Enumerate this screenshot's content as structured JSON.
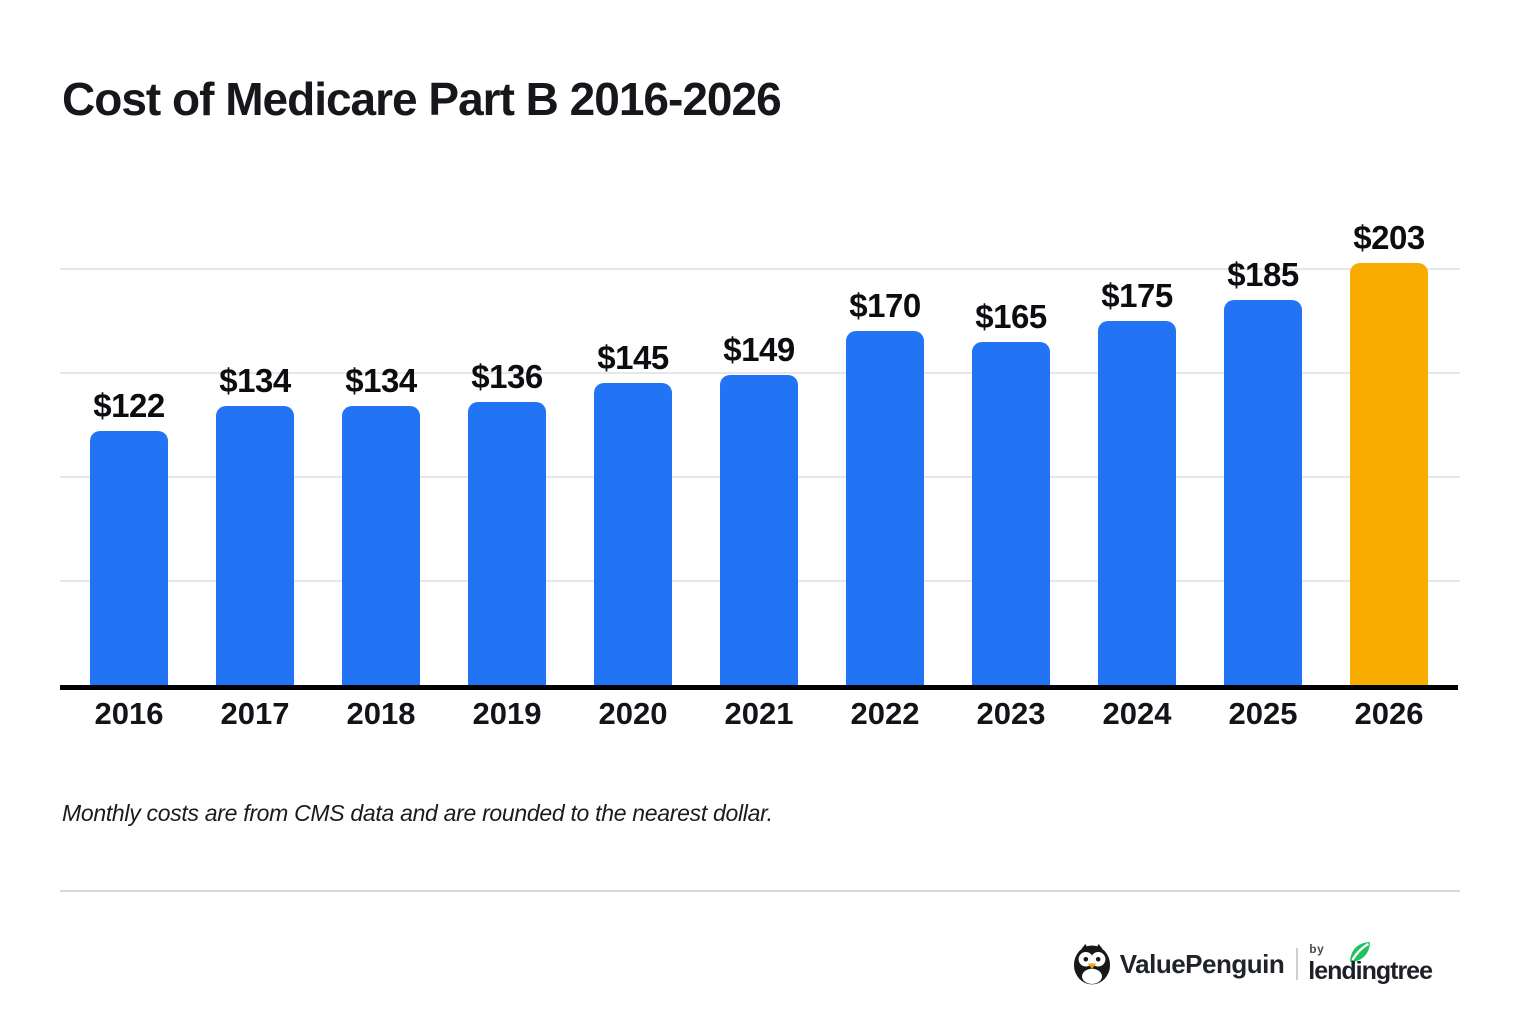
{
  "title": "Cost of Medicare Part B 2016-2026",
  "footnote": "Monthly costs are from CMS data and are rounded to the nearest dollar.",
  "branding": {
    "valuepenguin": "ValuePenguin",
    "by": "by",
    "lendingtree": "lendingtree"
  },
  "colors": {
    "bar_blue": "#2373F5",
    "bar_highlight_orange": "#F9AC00",
    "gridline": "#e7e7e7",
    "axis_black": "#010101",
    "leaf_green": "#1fc161",
    "penguin_beak_orange": "#f5a700"
  },
  "chart_data": {
    "type": "bar",
    "title": "Cost of Medicare Part B 2016-2026",
    "categories": [
      "2016",
      "2017",
      "2018",
      "2019",
      "2020",
      "2021",
      "2022",
      "2023",
      "2024",
      "2025",
      "2026"
    ],
    "values": [
      122,
      134,
      134,
      136,
      145,
      149,
      170,
      165,
      175,
      185,
      203
    ],
    "value_labels": [
      "$122",
      "$134",
      "$134",
      "$136",
      "$145",
      "$149",
      "$170",
      "$165",
      "$175",
      "$185",
      "$203"
    ],
    "highlight_index": 10,
    "xlabel": "",
    "ylabel": "",
    "ylim": [
      0,
      210
    ],
    "gridline_values": [
      50,
      100,
      150,
      200
    ],
    "y_tick_labels_shown": false,
    "grid": "horizontal",
    "legend": "none",
    "annotation": "2026 bar highlighted in orange; all others blue; data labels above each bar"
  }
}
